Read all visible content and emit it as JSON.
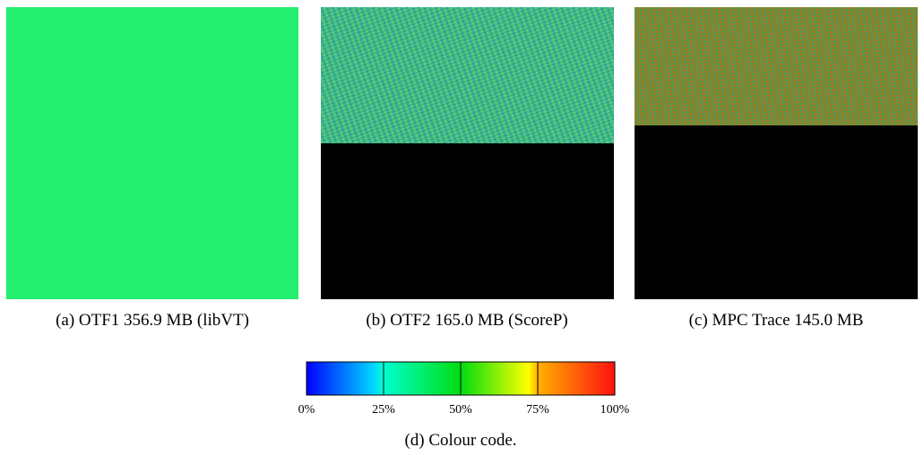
{
  "panels": [
    {
      "caption": "(a) OTF1 356.9 MB (libVT)"
    },
    {
      "caption": "(b) OTF2 165.0 MB (ScoreP)"
    },
    {
      "caption": "(c) MPC Trace 145.0 MB"
    }
  ],
  "colour_code": {
    "ticks": [
      "0%",
      "25%",
      "50%",
      "75%",
      "100%"
    ],
    "caption": "(d) Colour code."
  }
}
